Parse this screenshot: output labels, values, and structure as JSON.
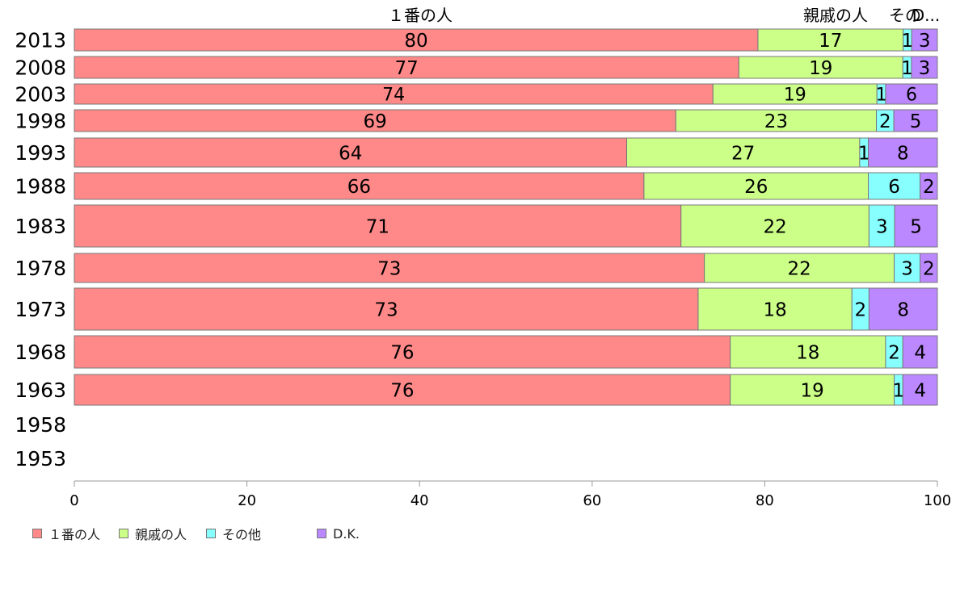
{
  "chart_data": {
    "type": "bar",
    "orientation": "horizontal",
    "stacked": true,
    "categories": [
      "2013",
      "2008",
      "2003",
      "1998",
      "1993",
      "1988",
      "1983",
      "1978",
      "1973",
      "1968",
      "1963",
      "1958",
      "1953"
    ],
    "series": [
      {
        "name": "１番の人",
        "color": "#ff8888",
        "values": [
          80,
          77,
          74,
          69,
          64,
          66,
          71,
          73,
          73,
          76,
          76,
          null,
          null
        ]
      },
      {
        "name": "親戚の人",
        "color": "#ccff88",
        "values": [
          17,
          19,
          19,
          23,
          27,
          26,
          22,
          22,
          18,
          18,
          19,
          null,
          null
        ]
      },
      {
        "name": "その他",
        "color": "#88ffff",
        "values": [
          1,
          1,
          1,
          2,
          1,
          6,
          3,
          3,
          2,
          2,
          1,
          null,
          null
        ]
      },
      {
        "name": "D.K.",
        "color": "#bb88ff",
        "values": [
          3,
          3,
          6,
          5,
          8,
          2,
          5,
          2,
          8,
          4,
          4,
          null,
          null
        ]
      }
    ],
    "top_labels": [
      "１番の人",
      "親戚の人",
      "その他",
      "D.K."
    ],
    "top_labels_display": [
      "１番の人",
      "親戚の人",
      "その",
      "D..."
    ],
    "xlim": [
      0,
      100
    ],
    "xticks": [
      0,
      20,
      40,
      60,
      80,
      100
    ],
    "legend_position": "bottom-left",
    "grid": false
  }
}
